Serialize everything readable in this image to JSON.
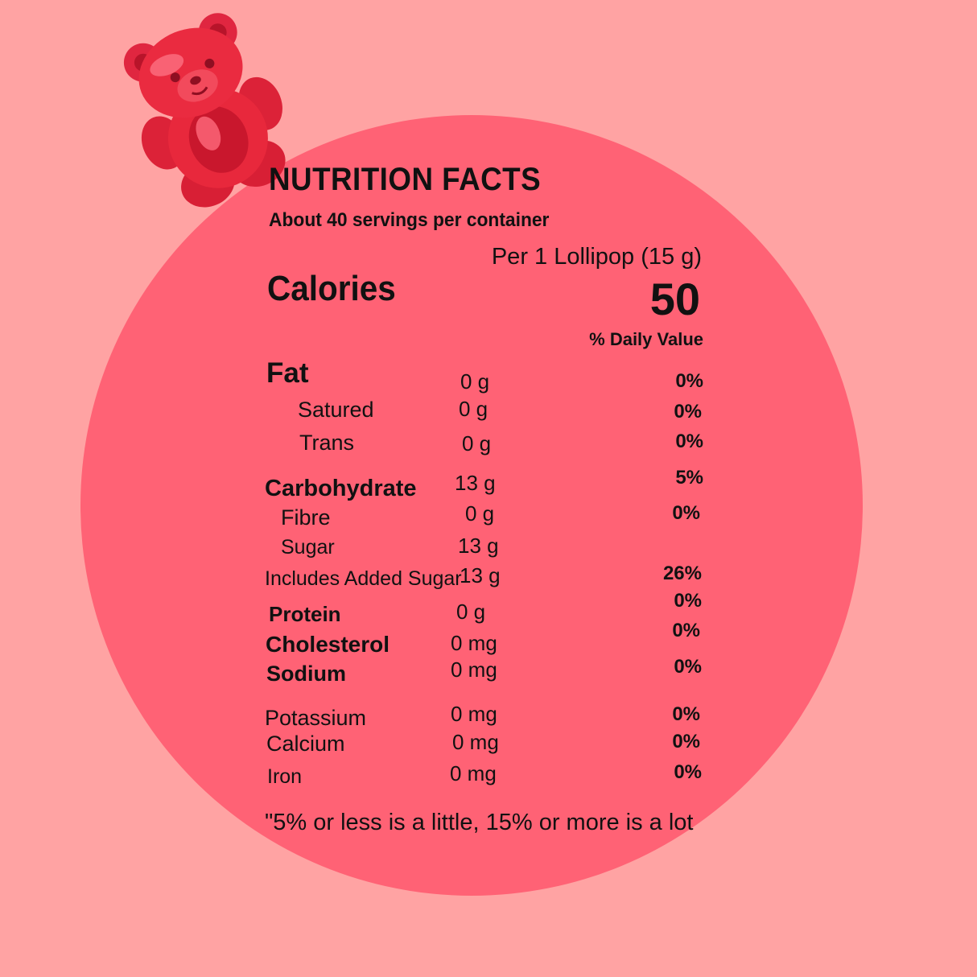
{
  "header": {
    "title": "NUTRITION FACTS",
    "servings": "About 40 servings per container",
    "per_serving": "Per 1 Lollipop (15 g)",
    "calories_label": "Calories",
    "calories_value": "50",
    "daily_value_header": "% Daily Value"
  },
  "nutrients": {
    "fat": {
      "label": "Fat",
      "amount": "0 g",
      "pct": "0%"
    },
    "saturated": {
      "label": "Satured",
      "amount": "0 g",
      "pct": "0%"
    },
    "trans": {
      "label": "Trans",
      "amount": "0 g",
      "pct": "0%"
    },
    "carbohydrate": {
      "label": "Carbohydrate",
      "amount": "13 g",
      "pct": "5%"
    },
    "fibre": {
      "label": "Fibre",
      "amount": "0 g",
      "pct": "0%"
    },
    "sugar": {
      "label": "Sugar",
      "amount": "13 g"
    },
    "added_sugar": {
      "label": "Includes  Added Sugar",
      "amount": "13 g",
      "pct": "26%"
    },
    "protein": {
      "label": "Protein",
      "amount": "0  g",
      "pct": "0%"
    },
    "cholesterol": {
      "label": "Cholesterol",
      "amount": "0 mg",
      "pct": "0%"
    },
    "sodium": {
      "label": "Sodium",
      "amount": "0 mg",
      "pct": "0%"
    },
    "potassium": {
      "label": "Potassium",
      "amount": "0 mg",
      "pct": "0%"
    },
    "calcium": {
      "label": "Calcium",
      "amount": "0 mg",
      "pct": "0%"
    },
    "iron": {
      "label": "Iron",
      "amount": "0 mg",
      "pct": "0%"
    }
  },
  "footer": "\"5% or less is a little, 15% or more is a lot",
  "colors": {
    "background": "#ffa3a3",
    "circle": "#ff6275",
    "bear": "#e8283c"
  },
  "decoration": {
    "icon": "gummy-bear-icon"
  }
}
